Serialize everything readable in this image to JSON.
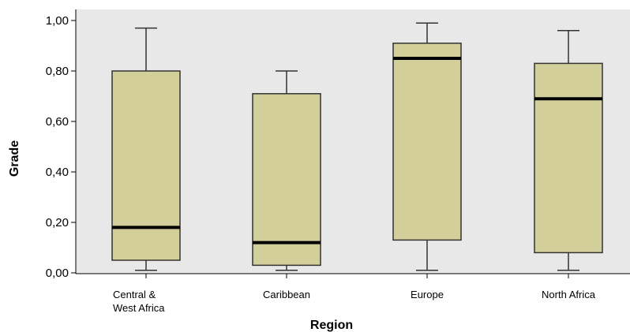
{
  "chart_data": {
    "type": "boxplot",
    "xlabel": "Region",
    "ylabel": "Grade",
    "ylim": [
      0,
      1
    ],
    "yticks": [
      "0,00",
      "0,20",
      "0,40",
      "0,60",
      "0,80",
      "1,00"
    ],
    "ytick_values": [
      0,
      0.2,
      0.4,
      0.6,
      0.8,
      1.0
    ],
    "categories": [
      {
        "lines": [
          "Central &",
          "West Africa"
        ]
      },
      {
        "lines": [
          "Caribbean"
        ]
      },
      {
        "lines": [
          "Europe"
        ]
      },
      {
        "lines": [
          "North Africa"
        ]
      }
    ],
    "boxes": [
      {
        "whisker_low": 0.01,
        "q1": 0.05,
        "median": 0.18,
        "q3": 0.8,
        "whisker_high": 0.97
      },
      {
        "whisker_low": 0.01,
        "q1": 0.03,
        "median": 0.12,
        "q3": 0.71,
        "whisker_high": 0.8
      },
      {
        "whisker_low": 0.01,
        "q1": 0.13,
        "median": 0.85,
        "q3": 0.91,
        "whisker_high": 0.99
      },
      {
        "whisker_low": 0.01,
        "q1": 0.08,
        "median": 0.69,
        "q3": 0.83,
        "whisker_high": 0.96
      }
    ],
    "grid": false,
    "colors": {
      "plot_background": "#e8e8e8",
      "box_fill": "#d3cf9a",
      "box_stroke": "#333333",
      "median": "#000000"
    }
  }
}
